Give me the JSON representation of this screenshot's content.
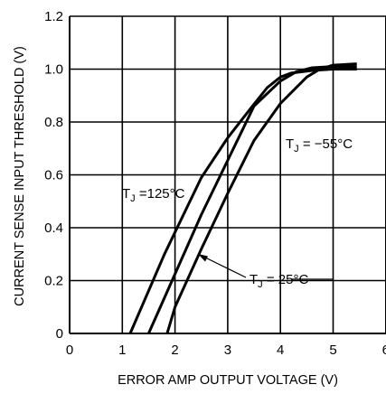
{
  "chart_data": {
    "type": "line",
    "title": "",
    "xlabel": "ERROR AMP OUTPUT VOLTAGE (V)",
    "ylabel": "CURRENT SENSE INPUT THRESHOLD (V)",
    "xlim": [
      0,
      6
    ],
    "ylim": [
      0,
      1.2
    ],
    "x_ticks": [
      "0",
      "1",
      "2",
      "3",
      "4",
      "5",
      "6"
    ],
    "y_ticks": [
      "0",
      "0.2",
      "0.4",
      "0.6",
      "0.8",
      "1.0",
      "1.2"
    ],
    "grid": true,
    "series": [
      {
        "name": "TJ = 125°C",
        "x": [
          1.15,
          1.8,
          2.5,
          3.0,
          3.45,
          3.75,
          4.0,
          4.2,
          4.6,
          5.0,
          5.45
        ],
        "y": [
          0.0,
          0.3,
          0.59,
          0.74,
          0.855,
          0.93,
          0.97,
          0.985,
          0.995,
          1.0,
          1.0
        ]
      },
      {
        "name": "TJ = 25°C",
        "x": [
          1.5,
          2.5,
          3.5,
          4.0,
          4.3,
          4.6,
          5.0,
          5.45
        ],
        "y": [
          0.0,
          0.45,
          0.86,
          0.955,
          0.99,
          1.005,
          1.01,
          1.01
        ]
      },
      {
        "name": "TJ = −55°C",
        "x": [
          1.85,
          2.0,
          2.5,
          3.0,
          3.5,
          4.0,
          4.5,
          4.75,
          5.0,
          5.45
        ],
        "y": [
          0.0,
          0.1,
          0.32,
          0.53,
          0.73,
          0.87,
          0.97,
          1.0,
          1.015,
          1.02
        ]
      }
    ],
    "annotations": [
      {
        "main": "T",
        "sub": "J",
        "rest": " =125°C"
      },
      {
        "main": "T",
        "sub": "J",
        "rest": " = 25°C"
      },
      {
        "main": "T",
        "sub": "J",
        "rest": " = −55°C"
      }
    ]
  }
}
